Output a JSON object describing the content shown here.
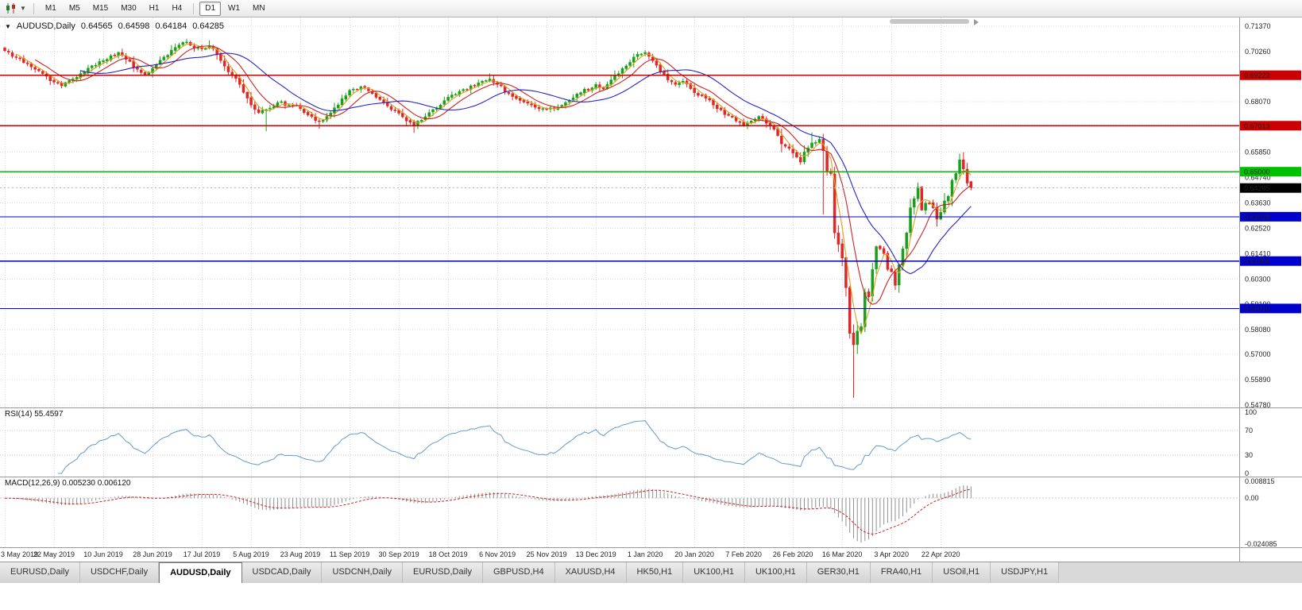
{
  "toolbar": {
    "chart_type_icon": "candlestick-chart-icon",
    "dropdown_glyph": "▼",
    "timeframes": [
      "M1",
      "M5",
      "M15",
      "M30",
      "H1",
      "H4",
      "D1",
      "W1",
      "MN"
    ],
    "active_timeframe": "D1",
    "separator_after": "H4"
  },
  "chart_header": {
    "dropdown_glyph": "▼",
    "symbol": "AUDUSD,Daily",
    "open": "0.64565",
    "high": "0.64598",
    "low": "0.64184",
    "close": "0.64285"
  },
  "rsi_label": "RSI(14) 55.4597",
  "macd_label": "MACD(12,26,9) 0.005230 0.006120",
  "tabs": {
    "items": [
      "EURUSD,Daily",
      "USDCHF,Daily",
      "AUDUSD,Daily",
      "USDCAD,Daily",
      "USDCNH,Daily",
      "EURUSD,Daily",
      "GBPUSD,H4",
      "XAUUSD,H4",
      "HK50,H1",
      "UK100,H1",
      "UK100,H1",
      "GER30,H1",
      "FRA40,H1",
      "USOil,H1",
      "USDJPY,H1"
    ],
    "active_index": 2
  },
  "chart_data": {
    "type": "candlestick",
    "symbol": "AUDUSD",
    "timeframe": "Daily",
    "n_candles": 256,
    "label_every": 13,
    "x_labels": [
      "3 May 2019",
      "22 May 2019",
      "10 Jun 2019",
      "28 Jun 2019",
      "17 Jul 2019",
      "5 Aug 2019",
      "23 Aug 2019",
      "11 Sep 2019",
      "30 Sep 2019",
      "18 Oct 2019",
      "6 Nov 2019",
      "25 Nov 2019",
      "13 Dec 2019",
      "1 Jan 2020",
      "20 Jan 2020",
      "7 Feb 2020",
      "26 Feb 2020",
      "16 Mar 2020",
      "3 Apr 2020",
      "22 Apr 2020"
    ],
    "y_range": {
      "top": 0.7137,
      "bottom": 0.5478
    },
    "y_ticks": [
      "0.71370",
      "0.70260",
      "0.69150",
      "0.68070",
      "0.66960",
      "0.65850",
      "0.64740",
      "0.63630",
      "0.62520",
      "0.61410",
      "0.60300",
      "0.59190",
      "0.58080",
      "0.57000",
      "0.55890",
      "0.54780"
    ],
    "grid": true,
    "candle_colors": {
      "up": "#17a11b",
      "down": "#e02626"
    },
    "close_anchors": [
      [
        0,
        0.703
      ],
      [
        2,
        0.7005
      ],
      [
        5,
        0.6978
      ],
      [
        8,
        0.6948
      ],
      [
        11,
        0.6918
      ],
      [
        13,
        0.6892
      ],
      [
        15,
        0.6876
      ],
      [
        18,
        0.6906
      ],
      [
        21,
        0.6936
      ],
      [
        24,
        0.6966
      ],
      [
        26,
        0.6986
      ],
      [
        28,
        0.7008
      ],
      [
        30,
        0.7022
      ],
      [
        32,
        0.6992
      ],
      [
        35,
        0.6948
      ],
      [
        37,
        0.6922
      ],
      [
        39,
        0.6952
      ],
      [
        42,
        0.7002
      ],
      [
        44,
        0.7032
      ],
      [
        46,
        0.7055
      ],
      [
        48,
        0.7068
      ],
      [
        50,
        0.7042
      ],
      [
        52,
        0.7038
      ],
      [
        54,
        0.7052
      ],
      [
        56,
        0.7012
      ],
      [
        58,
        0.6962
      ],
      [
        60,
        0.6922
      ],
      [
        62,
        0.6882
      ],
      [
        64,
        0.6822
      ],
      [
        65,
        0.6792
      ],
      [
        67,
        0.6758
      ],
      [
        69,
        0.6772
      ],
      [
        72,
        0.6802
      ],
      [
        75,
        0.6792
      ],
      [
        78,
        0.6776
      ],
      [
        80,
        0.6748
      ],
      [
        83,
        0.6722
      ],
      [
        85,
        0.6742
      ],
      [
        88,
        0.6792
      ],
      [
        91,
        0.6856
      ],
      [
        94,
        0.6872
      ],
      [
        97,
        0.6842
      ],
      [
        100,
        0.6802
      ],
      [
        102,
        0.6772
      ],
      [
        104,
        0.6756
      ],
      [
        106,
        0.6722
      ],
      [
        108,
        0.6702
      ],
      [
        110,
        0.6726
      ],
      [
        113,
        0.6772
      ],
      [
        115,
        0.6792
      ],
      [
        117,
        0.6826
      ],
      [
        120,
        0.6852
      ],
      [
        123,
        0.6876
      ],
      [
        126,
        0.6896
      ],
      [
        128,
        0.6906
      ],
      [
        130,
        0.6882
      ],
      [
        133,
        0.6842
      ],
      [
        136,
        0.6812
      ],
      [
        139,
        0.6792
      ],
      [
        143,
        0.6772
      ],
      [
        146,
        0.6782
      ],
      [
        149,
        0.6812
      ],
      [
        152,
        0.6846
      ],
      [
        156,
        0.6882
      ],
      [
        158,
        0.6862
      ],
      [
        160,
        0.6902
      ],
      [
        163,
        0.6952
      ],
      [
        166,
        0.7002
      ],
      [
        169,
        0.7022
      ],
      [
        171,
        0.6986
      ],
      [
        173,
        0.6936
      ],
      [
        175,
        0.6902
      ],
      [
        177,
        0.6882
      ],
      [
        179,
        0.6896
      ],
      [
        182,
        0.6846
      ],
      [
        185,
        0.6822
      ],
      [
        188,
        0.6776
      ],
      [
        191,
        0.6746
      ],
      [
        193,
        0.6722
      ],
      [
        195,
        0.6702
      ],
      [
        197,
        0.6722
      ],
      [
        199,
        0.6742
      ],
      [
        201,
        0.6712
      ],
      [
        203,
        0.6686
      ],
      [
        205,
        0.6622
      ],
      [
        207,
        0.6602
      ],
      [
        208,
        0.6582
      ],
      [
        210,
        0.6542
      ],
      [
        211,
        0.6586
      ],
      [
        213,
        0.6626
      ],
      [
        215,
        0.6642
      ],
      [
        216,
        0.6592
      ],
      [
        217,
        0.6502
      ],
      [
        218,
        0.6492
      ],
      [
        219,
        0.6232
      ],
      [
        220,
        0.6182
      ],
      [
        221,
        0.6122
      ],
      [
        222,
        0.5992
      ],
      [
        223,
        0.5792
      ],
      [
        224,
        0.5742
      ],
      [
        225,
        0.5802
      ],
      [
        226,
        0.5822
      ],
      [
        227,
        0.5972
      ],
      [
        228,
        0.5952
      ],
      [
        229,
        0.6072
      ],
      [
        230,
        0.6172
      ],
      [
        231,
        0.6162
      ],
      [
        232,
        0.6142
      ],
      [
        233,
        0.6072
      ],
      [
        234,
        0.6062
      ],
      [
        235,
        0.6002
      ],
      [
        236,
        0.6092
      ],
      [
        237,
        0.6162
      ],
      [
        238,
        0.6232
      ],
      [
        239,
        0.6342
      ],
      [
        240,
        0.6382
      ],
      [
        241,
        0.6432
      ],
      [
        242,
        0.6332
      ],
      [
        243,
        0.6362
      ],
      [
        244,
        0.6362
      ],
      [
        245,
        0.6342
      ],
      [
        246,
        0.6292
      ],
      [
        247,
        0.6322
      ],
      [
        248,
        0.6372
      ],
      [
        249,
        0.6392
      ],
      [
        250,
        0.6462
      ],
      [
        251,
        0.6492
      ],
      [
        252,
        0.6552
      ],
      [
        253,
        0.6512
      ],
      [
        254,
        0.645
      ],
      [
        255,
        0.64285
      ]
    ],
    "special_lows": {
      "69": 0.6677,
      "83": 0.6688,
      "108": 0.667,
      "205": 0.6585,
      "216": 0.6313,
      "224": 0.551
    },
    "special_highs": {
      "48": 0.7082,
      "54": 0.7075,
      "128": 0.693,
      "169": 0.7032,
      "213": 0.6672,
      "252": 0.657
    },
    "moving_averages": [
      {
        "period": 4,
        "color": "#e0a018"
      },
      {
        "period": 9,
        "color": "#cc2222"
      },
      {
        "period": 21,
        "color": "#2424c8"
      }
    ],
    "hlines": [
      {
        "label": "0.69223",
        "value": 0.69223,
        "color": "#cc0000"
      },
      {
        "label": "0.67013",
        "value": 0.67013,
        "color": "#cc0000"
      },
      {
        "label": "0.65000",
        "value": 0.65,
        "color": "#00c000"
      },
      {
        "label": "0.63028",
        "value": 0.63028,
        "color": "#0000cc"
      },
      {
        "label": "0.61086",
        "value": 0.61086,
        "color": "#0000cc"
      },
      {
        "label": "0.59010",
        "value": 0.5901,
        "color": "#0000cc"
      }
    ],
    "last_price": {
      "label": "0.64285",
      "value": 0.64285,
      "bg": "#000000"
    },
    "rsi": {
      "period": 14,
      "value": 55.4597,
      "color": "#6699cc",
      "ticks": [
        {
          "label": "100",
          "value": 100
        },
        {
          "label": "70",
          "value": 70
        },
        {
          "label": "30",
          "value": 30
        },
        {
          "label": "0",
          "value": 0
        }
      ],
      "guides": [
        70,
        30
      ]
    },
    "macd": {
      "fast": 12,
      "slow": 26,
      "signal_period": 9,
      "main_value": 0.00523,
      "signal_value": 0.00612,
      "hist_color": "#8f8f8f",
      "signal_color": "#cc2222",
      "ticks": [
        {
          "label": "0.008815",
          "value": 0.008815
        },
        {
          "label": "0.00",
          "value": 0
        },
        {
          "label": "-0.024085",
          "value": -0.024085
        }
      ]
    },
    "grid_color": "#d9d9d9"
  }
}
